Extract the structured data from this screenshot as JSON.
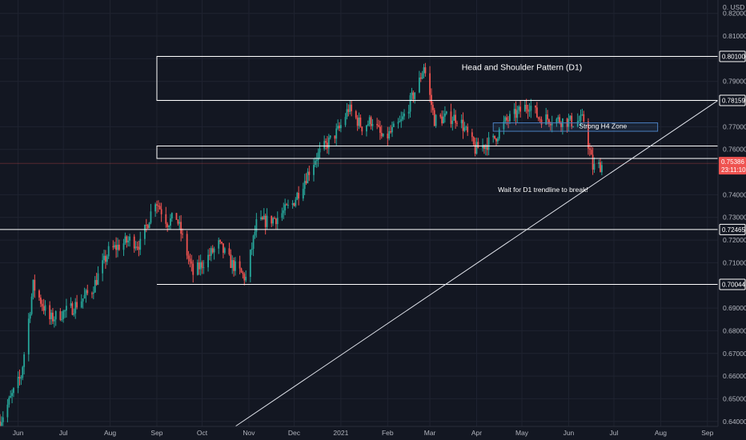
{
  "chart_data": {
    "type": "candlestick",
    "currency_label": "0. USD",
    "y_range": [
      0.6378,
      0.8259
    ],
    "y_ticks": [
      0.64,
      0.65,
      0.66,
      0.67,
      0.68,
      0.69,
      0.71,
      0.72,
      0.73,
      0.74,
      0.76,
      0.77,
      0.79,
      0.8,
      0.81,
      0.82
    ],
    "y_tick_labels": [
      "0.64000",
      "0.65000",
      "0.66000",
      "0.67000",
      "0.68000",
      "0.69000",
      "0.71000",
      "0.72000",
      "0.73000",
      "0.74000",
      "0.76000",
      "0.77000",
      "0.79000",
      "0.80000",
      "0.81000",
      "0.82000"
    ],
    "x_labels": [
      "Jun",
      "Jul",
      "Aug",
      "Sep",
      "Oct",
      "Nov",
      "Dec",
      "2021",
      "Feb",
      "Mar",
      "Apr",
      "May",
      "Jun",
      "Jul",
      "Aug",
      "Sep"
    ],
    "x_range": [
      "2020-05-20",
      "2021-09-08"
    ],
    "x_label_dates": [
      "2020-06-01",
      "2020-07-01",
      "2020-08-01",
      "2020-09-01",
      "2020-10-01",
      "2020-11-01",
      "2020-12-01",
      "2021-01-01",
      "2021-02-01",
      "2021-03-01",
      "2021-04-01",
      "2021-05-01",
      "2021-06-01",
      "2021-07-01",
      "2021-08-01",
      "2021-09-01"
    ],
    "price_levels": [
      {
        "value": 0.801,
        "label": "0.80100"
      },
      {
        "value": 0.78159,
        "label": "0.78159"
      },
      {
        "value": 0.72465,
        "label": "0.72465"
      },
      {
        "value": 0.70044,
        "label": "0.70044"
      }
    ],
    "current_price": {
      "value": 0.75386,
      "label": "0.75386",
      "countdown": "23:11:10"
    },
    "zones": [
      {
        "name": "Head and Shoulder Pattern (D1)",
        "top": 0.801,
        "bottom": 0.78159,
        "start": "2020-09-01",
        "end": "2021-09-08",
        "color": "#ffffff"
      },
      {
        "name": "",
        "top": 0.7615,
        "bottom": 0.756,
        "start": "2020-09-01",
        "end": "2021-09-08",
        "color": "#ffffff"
      },
      {
        "name": "Strong H4 Zone",
        "top": 0.7717,
        "bottom": 0.768,
        "start": "2021-04-12",
        "end": "2021-07-30",
        "color": "#4a7fc0"
      }
    ],
    "trendline": {
      "start": [
        "2020-10-23",
        0.6378
      ],
      "end": [
        "2021-09-08",
        0.7816
      ]
    },
    "annotations": [
      {
        "text": "Head and Shoulder Pattern (D1)",
        "date": "2021-05-01",
        "value": 0.796
      },
      {
        "text": "Strong H4 Zone",
        "date": "2021-06-11",
        "value": 0.77
      },
      {
        "text": "Wait for D1 trendline to break!",
        "date": "2021-05-15",
        "value": 0.742
      }
    ],
    "anchors": [
      [
        "2020-05-20",
        0.64
      ],
      [
        "2020-06-03",
        0.66
      ],
      [
        "2020-06-11",
        0.7
      ],
      [
        "2020-06-22",
        0.685
      ],
      [
        "2020-07-07",
        0.69
      ],
      [
        "2020-07-20",
        0.698
      ],
      [
        "2020-07-31",
        0.715
      ],
      [
        "2020-08-14",
        0.72
      ],
      [
        "2020-08-21",
        0.718
      ],
      [
        "2020-08-31",
        0.738
      ],
      [
        "2020-09-08",
        0.728
      ],
      [
        "2020-09-14",
        0.73
      ],
      [
        "2020-09-25",
        0.705
      ],
      [
        "2020-10-12",
        0.718
      ],
      [
        "2020-10-20",
        0.71
      ],
      [
        "2020-10-30",
        0.703
      ],
      [
        "2020-11-06",
        0.727
      ],
      [
        "2020-11-20",
        0.73
      ],
      [
        "2020-11-30",
        0.736
      ],
      [
        "2020-12-15",
        0.756
      ],
      [
        "2020-12-31",
        0.769
      ],
      [
        "2021-01-06",
        0.778
      ],
      [
        "2021-01-15",
        0.77
      ],
      [
        "2021-01-22",
        0.773
      ],
      [
        "2021-01-29",
        0.764
      ],
      [
        "2021-02-10",
        0.772
      ],
      [
        "2021-02-22",
        0.79
      ],
      [
        "2021-02-25",
        0.797
      ],
      [
        "2021-03-04",
        0.773
      ],
      [
        "2021-03-12",
        0.774
      ],
      [
        "2021-03-20",
        0.774
      ],
      [
        "2021-03-31",
        0.76
      ],
      [
        "2021-04-12",
        0.764
      ],
      [
        "2021-04-20",
        0.772
      ],
      [
        "2021-04-28",
        0.776
      ],
      [
        "2021-05-06",
        0.78
      ],
      [
        "2021-05-12",
        0.774
      ],
      [
        "2021-05-25",
        0.773
      ],
      [
        "2021-06-04",
        0.772
      ],
      [
        "2021-06-11",
        0.773
      ],
      [
        "2021-06-17",
        0.752
      ],
      [
        "2021-06-23",
        0.753
      ]
    ]
  }
}
